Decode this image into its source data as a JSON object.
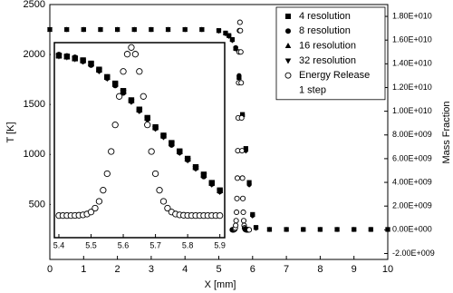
{
  "chart_data": [
    {
      "type": "scatter",
      "xlabel": "X [mm]",
      "ylabel": "T [K]",
      "y2label": "Mass Fraction",
      "xlim": [
        0,
        10
      ],
      "xticks": [
        0,
        1,
        2,
        3,
        4,
        5,
        6,
        7,
        8,
        9,
        10
      ],
      "ylim": [
        -50,
        2500
      ],
      "yticks": [
        500,
        1000,
        1500,
        2000,
        2500
      ],
      "y2lim": [
        -2500000000.0,
        19000000000.0
      ],
      "y2ticks": [
        {
          "value": -2000000000.0,
          "label": "-2.00E+009"
        },
        {
          "value": 0,
          "label": "0.00E+000"
        },
        {
          "value": 2000000000.0,
          "label": "2.00E+009"
        },
        {
          "value": 4000000000.0,
          "label": "4.00E+009"
        },
        {
          "value": 6000000000.0,
          "label": "6.00E+009"
        },
        {
          "value": 8000000000.0,
          "label": "8.00E+009"
        },
        {
          "value": 10000000000.0,
          "label": "1.00E+010"
        },
        {
          "value": 12000000000.0,
          "label": "1.20E+010"
        },
        {
          "value": 14000000000.0,
          "label": "1.40E+010"
        },
        {
          "value": 16000000000.0,
          "label": "1.60E+010"
        },
        {
          "value": 18000000000.0,
          "label": "1.80E+010"
        }
      ],
      "legend": "upper right",
      "legend_note": "1 step",
      "x": [
        0,
        0.5,
        1,
        1.5,
        2,
        2.5,
        3,
        3.5,
        4,
        4.5,
        5,
        5.2,
        5.3,
        5.4,
        5.5,
        5.6,
        5.7,
        5.8,
        5.9,
        6,
        6.1,
        6.5,
        7,
        7.5,
        8,
        8.5,
        9,
        9.5,
        10
      ],
      "series": [
        {
          "name": "4 resolution",
          "marker": "square",
          "color": "#000000",
          "values": [
            2250,
            2250,
            2250,
            2250,
            2250,
            2250,
            2250,
            2250,
            2250,
            2250,
            2240,
            2215,
            2190,
            2150,
            2060,
            1770,
            1400,
            1060,
            720,
            400,
            270,
            250,
            250,
            250,
            250,
            250,
            250,
            250,
            250
          ]
        },
        {
          "name": "8 resolution",
          "marker": "circle",
          "color": "#000000",
          "values": [
            2250,
            2250,
            2250,
            2250,
            2250,
            2250,
            2250,
            2250,
            2250,
            2250,
            2238,
            2210,
            2185,
            2145,
            2070,
            1790,
            1390,
            1040,
            700,
            390,
            265,
            250,
            250,
            250,
            250,
            250,
            250,
            250,
            250
          ]
        },
        {
          "name": "16 resolution",
          "marker": "triangle-up",
          "color": "#000000",
          "values": [
            2250,
            2250,
            2250,
            2250,
            2250,
            2250,
            2250,
            2250,
            2250,
            2250,
            2236,
            2212,
            2188,
            2148,
            2065,
            1780,
            1395,
            1050,
            710,
            395,
            268,
            250,
            250,
            250,
            250,
            250,
            250,
            250,
            250
          ]
        },
        {
          "name": "32 resolution",
          "marker": "triangle-down",
          "color": "#000000",
          "values": [
            2250,
            2250,
            2250,
            2250,
            2250,
            2250,
            2250,
            2250,
            2250,
            2250,
            2235,
            2208,
            2182,
            2140,
            2055,
            1765,
            1380,
            1035,
            695,
            385,
            262,
            250,
            250,
            250,
            250,
            250,
            250,
            250,
            250
          ]
        },
        {
          "name": "Energy Release",
          "marker": "open-circle",
          "color": "#000000",
          "axis": "y2",
          "x": [
            5.4,
            5.4125,
            5.425,
            5.4375,
            5.45,
            5.4625,
            5.475,
            5.4875,
            5.5,
            5.5125,
            5.525,
            5.5375,
            5.55,
            5.5625,
            5.575,
            5.5875,
            5.6,
            5.6125,
            5.625,
            5.6375,
            5.65,
            5.6625,
            5.675,
            5.6875,
            5.7,
            5.7125,
            5.725,
            5.7375,
            5.75,
            5.7625,
            5.775,
            5.7875,
            5.8,
            5.8125,
            5.825,
            5.8375,
            5.85,
            5.8625,
            5.875,
            5.8875,
            5.9
          ],
          "values": [
            0,
            0,
            0,
            0,
            10000000.0,
            30000000.0,
            70000000.0,
            160000000.0,
            370000000.0,
            770000000.0,
            1480000000.0,
            2640000000.0,
            4360000000.0,
            6670000000.0,
            9440000000.0,
            12400000000.0,
            15000000000.0,
            16800000000.0,
            17500000000.0,
            16800000000.0,
            15000000000.0,
            12400000000.0,
            9440000000.0,
            6670000000.0,
            4360000000.0,
            2640000000.0,
            1480000000.0,
            770000000.0,
            370000000.0,
            160000000.0,
            70000000.0,
            30000000.0,
            10000000.0,
            0,
            0,
            0,
            0,
            0,
            0,
            0,
            0
          ]
        }
      ]
    },
    {
      "type": "scatter",
      "inset": true,
      "xlim": [
        5.386,
        5.915
      ],
      "xticks": [
        5.4,
        5.5,
        5.6,
        5.7,
        5.8,
        5.9
      ],
      "ylim": [
        200,
        2300
      ],
      "y2lim": [
        -2300000000.0,
        18000000000.0
      ],
      "x": [
        5.4,
        5.425,
        5.45,
        5.475,
        5.5,
        5.525,
        5.55,
        5.575,
        5.6,
        5.625,
        5.65,
        5.675,
        5.7,
        5.725,
        5.75,
        5.775,
        5.8,
        5.825,
        5.85,
        5.875,
        5.9
      ],
      "series": [
        {
          "marker": "square",
          "color": "#000000",
          "values": [
            2160,
            2150,
            2130,
            2110,
            2075,
            2010,
            1930,
            1860,
            1780,
            1680,
            1580,
            1490,
            1390,
            1300,
            1220,
            1130,
            1050,
            960,
            880,
            790,
            710
          ]
        },
        {
          "marker": "circle",
          "color": "#000000",
          "values": [
            2170,
            2155,
            2140,
            2100,
            2060,
            2000,
            1920,
            1840,
            1760,
            1670,
            1570,
            1480,
            1380,
            1290,
            1200,
            1120,
            1040,
            950,
            860,
            780,
            700
          ]
        },
        {
          "marker": "triangle-up",
          "color": "#000000",
          "values": [
            2165,
            2150,
            2135,
            2105,
            2070,
            2005,
            1925,
            1850,
            1770,
            1675,
            1575,
            1485,
            1385,
            1295,
            1210,
            1125,
            1045,
            955,
            870,
            785,
            705
          ]
        },
        {
          "marker": "triangle-down",
          "color": "#000000",
          "values": [
            2155,
            2145,
            2125,
            2100,
            2065,
            1995,
            1915,
            1845,
            1765,
            1665,
            1565,
            1475,
            1375,
            1285,
            1205,
            1115,
            1035,
            945,
            865,
            775,
            695
          ]
        },
        {
          "marker": "open-circle",
          "color": "#000000",
          "axis": "y2",
          "x": [
            5.4,
            5.4125,
            5.425,
            5.4375,
            5.45,
            5.4625,
            5.475,
            5.4875,
            5.5,
            5.5125,
            5.525,
            5.5375,
            5.55,
            5.5625,
            5.575,
            5.5875,
            5.6,
            5.6125,
            5.625,
            5.6375,
            5.65,
            5.6625,
            5.675,
            5.6875,
            5.7,
            5.7125,
            5.725,
            5.7375,
            5.75,
            5.7625,
            5.775,
            5.7875,
            5.8,
            5.8125,
            5.825,
            5.8375,
            5.85,
            5.8625,
            5.875,
            5.8875,
            5.9
          ],
          "values": [
            0,
            0,
            0,
            0,
            10000000.0,
            30000000.0,
            70000000.0,
            160000000.0,
            370000000.0,
            770000000.0,
            1480000000.0,
            2640000000.0,
            4360000000.0,
            6670000000.0,
            9440000000.0,
            12400000000.0,
            15000000000.0,
            16800000000.0,
            17500000000.0,
            16800000000.0,
            15000000000.0,
            12400000000.0,
            9440000000.0,
            6670000000.0,
            4360000000.0,
            2640000000.0,
            1480000000.0,
            770000000.0,
            370000000.0,
            160000000.0,
            70000000.0,
            30000000.0,
            10000000.0,
            0,
            0,
            0,
            0,
            0,
            0,
            0,
            0
          ]
        }
      ]
    }
  ]
}
